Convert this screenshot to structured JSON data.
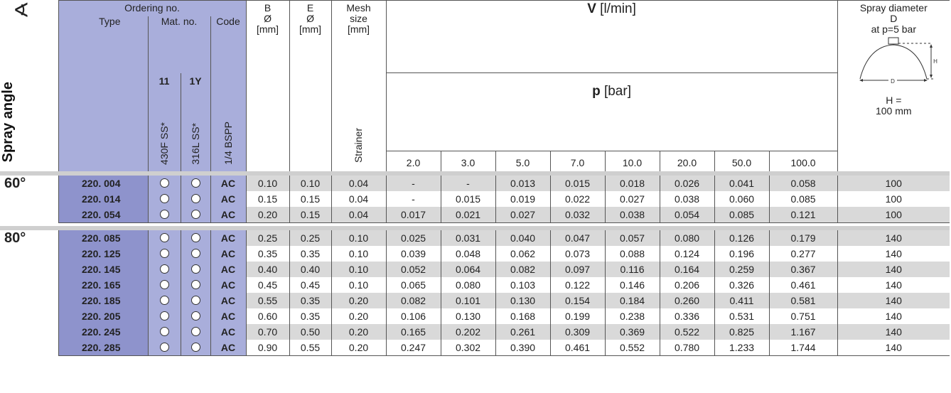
{
  "header": {
    "angle_symbol": "∢",
    "ordering": "Ordering no.",
    "type": "Type",
    "mat_no": "Mat. no.",
    "code": "Code",
    "b_label": "B",
    "b_dia": "Ø",
    "b_unit": "[mm]",
    "e_label": "E",
    "e_dia": "Ø",
    "e_unit": "[mm]",
    "mesh1": "Mesh",
    "mesh2": "size",
    "mesh_unit": "[mm]",
    "flow_symbol": "V",
    "flow_unit": " [l/min]",
    "pressure_symbol": "p",
    "pressure_unit": " [bar]",
    "spray_dia1": "Spray diameter",
    "spray_dia2": "D",
    "spray_dia3": "at p=5 bar",
    "h_eq": "H =",
    "h_val": "100 mm",
    "diagram_d": "D",
    "diagram_h": "H",
    "spray_angle_vertical": "Spray angle",
    "mat_11": "11",
    "mat_1y": "1Y",
    "mat_11_name": "430F SS*",
    "mat_1y_name": "316L SS*",
    "code_name": "1/4 BSPP",
    "strainer": "Strainer",
    "pressures": [
      "2.0",
      "3.0",
      "5.0",
      "7.0",
      "10.0",
      "20.0",
      "50.0",
      "100.0"
    ]
  },
  "groups": [
    {
      "angle": "60°",
      "rows": [
        {
          "type": "220. 004",
          "code": "AC",
          "B": "0.10",
          "E": "0.10",
          "mesh": "0.04",
          "flows": [
            "-",
            "-",
            "0.013",
            "0.015",
            "0.018",
            "0.026",
            "0.041",
            "0.058"
          ],
          "D": "100"
        },
        {
          "type": "220. 014",
          "code": "AC",
          "B": "0.15",
          "E": "0.15",
          "mesh": "0.04",
          "flows": [
            "-",
            "0.015",
            "0.019",
            "0.022",
            "0.027",
            "0.038",
            "0.060",
            "0.085"
          ],
          "D": "100"
        },
        {
          "type": "220. 054",
          "code": "AC",
          "B": "0.20",
          "E": "0.15",
          "mesh": "0.04",
          "flows": [
            "0.017",
            "0.021",
            "0.027",
            "0.032",
            "0.038",
            "0.054",
            "0.085",
            "0.121"
          ],
          "D": "100"
        }
      ]
    },
    {
      "angle": "80°",
      "rows": [
        {
          "type": "220. 085",
          "code": "AC",
          "B": "0.25",
          "E": "0.25",
          "mesh": "0.10",
          "flows": [
            "0.025",
            "0.031",
            "0.040",
            "0.047",
            "0.057",
            "0.080",
            "0.126",
            "0.179"
          ],
          "D": "140"
        },
        {
          "type": "220. 125",
          "code": "AC",
          "B": "0.35",
          "E": "0.35",
          "mesh": "0.10",
          "flows": [
            "0.039",
            "0.048",
            "0.062",
            "0.073",
            "0.088",
            "0.124",
            "0.196",
            "0.277"
          ],
          "D": "140"
        },
        {
          "type": "220. 145",
          "code": "AC",
          "B": "0.40",
          "E": "0.40",
          "mesh": "0.10",
          "flows": [
            "0.052",
            "0.064",
            "0.082",
            "0.097",
            "0.116",
            "0.164",
            "0.259",
            "0.367"
          ],
          "D": "140"
        },
        {
          "type": "220. 165",
          "code": "AC",
          "B": "0.45",
          "E": "0.45",
          "mesh": "0.10",
          "flows": [
            "0.065",
            "0.080",
            "0.103",
            "0.122",
            "0.146",
            "0.206",
            "0.326",
            "0.461"
          ],
          "D": "140"
        },
        {
          "type": "220. 185",
          "code": "AC",
          "B": "0.55",
          "E": "0.35",
          "mesh": "0.20",
          "flows": [
            "0.082",
            "0.101",
            "0.130",
            "0.154",
            "0.184",
            "0.260",
            "0.411",
            "0.581"
          ],
          "D": "140"
        },
        {
          "type": "220. 205",
          "code": "AC",
          "B": "0.60",
          "E": "0.35",
          "mesh": "0.20",
          "flows": [
            "0.106",
            "0.130",
            "0.168",
            "0.199",
            "0.238",
            "0.336",
            "0.531",
            "0.751"
          ],
          "D": "140"
        },
        {
          "type": "220. 245",
          "code": "AC",
          "B": "0.70",
          "E": "0.50",
          "mesh": "0.20",
          "flows": [
            "0.165",
            "0.202",
            "0.261",
            "0.309",
            "0.369",
            "0.522",
            "0.825",
            "1.167"
          ],
          "D": "140"
        },
        {
          "type": "220. 285",
          "code": "AC",
          "B": "0.90",
          "E": "0.55",
          "mesh": "0.20",
          "flows": [
            "0.247",
            "0.302",
            "0.390",
            "0.461",
            "0.552",
            "0.780",
            "1.233",
            "1.744"
          ],
          "D": "140"
        }
      ]
    }
  ],
  "colors": {
    "header_blue": "#a9aedb",
    "type_blue": "#8e93cc",
    "row_shade": "#d9d9d9"
  }
}
